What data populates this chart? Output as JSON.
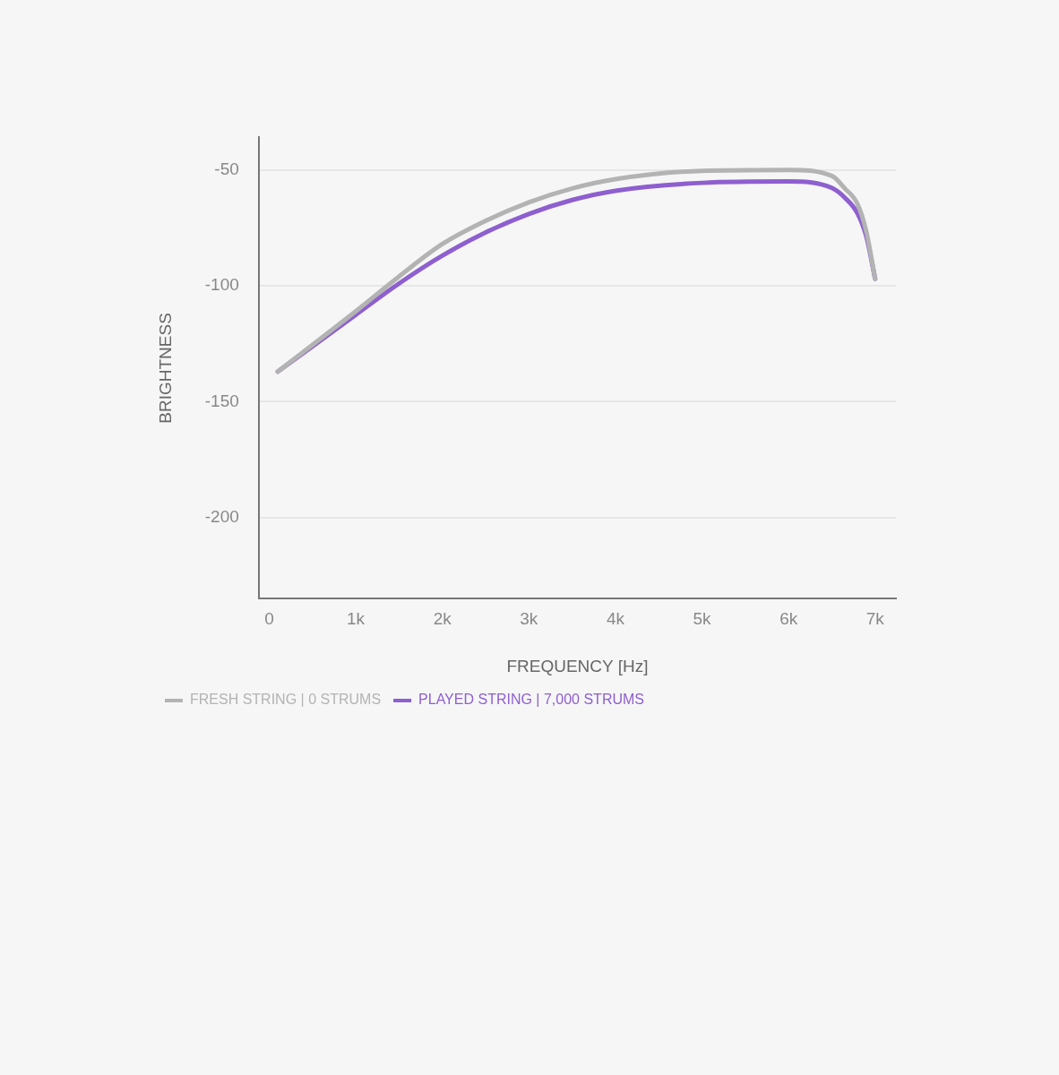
{
  "chart_data": {
    "type": "line",
    "xlabel": "FREQUENCY [Hz]",
    "ylabel": "BRIGHTNESS",
    "x": [
      100,
      1000,
      1500,
      2000,
      2500,
      3000,
      3500,
      4000,
      5000,
      6000,
      6500,
      6650,
      6800,
      6900,
      7000
    ],
    "series": [
      {
        "name": "FRESH STRING | 0 STRUMS",
        "color": "#b3b3b3",
        "values": [
          -137,
          -111,
          -96,
          -82,
          -72,
          -64,
          -58,
          -54,
          -50.4,
          -50,
          -52.6,
          -58,
          -65,
          -77,
          -97
        ]
      },
      {
        "name": "PLAYED STRING | 7,000 STRUMS",
        "color": "#8e5fcf",
        "values": [
          -137,
          -112.5,
          -99,
          -87,
          -77,
          -69,
          -63,
          -59,
          -55.6,
          -55,
          -57.8,
          -62,
          -69,
          -79,
          -97
        ]
      }
    ],
    "xlim": [
      -120,
      7240
    ],
    "xticks": [
      {
        "value": 0,
        "label": "0"
      },
      {
        "value": 1000,
        "label": "1k"
      },
      {
        "value": 2000,
        "label": "2k"
      },
      {
        "value": 3000,
        "label": "3k"
      },
      {
        "value": 4000,
        "label": "4k"
      },
      {
        "value": 5000,
        "label": "5k"
      },
      {
        "value": 6000,
        "label": "6k"
      },
      {
        "value": 7000,
        "label": "7k"
      }
    ],
    "ylim": [
      -235,
      -36
    ],
    "yticks": [
      -50,
      -100,
      -150,
      -200
    ],
    "grid": "y",
    "legend": "bottom left",
    "marker": "none",
    "line_style": "solid"
  }
}
